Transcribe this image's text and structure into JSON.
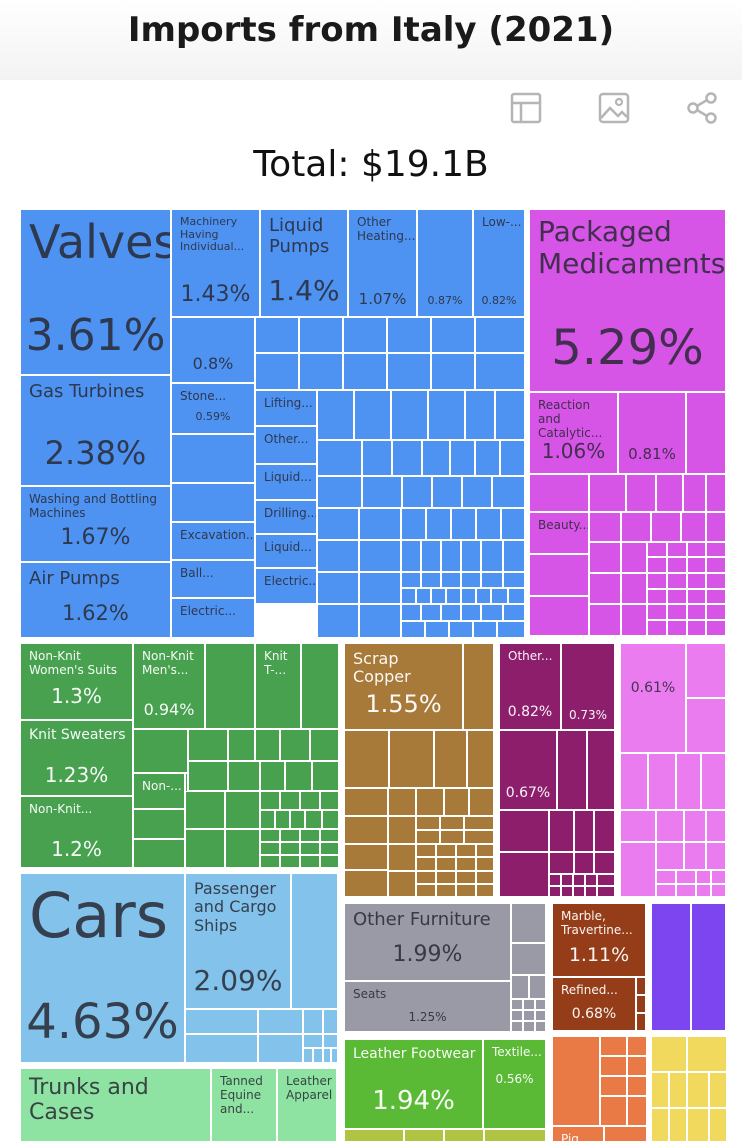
{
  "header": {
    "title": "Imports from Italy (2021)"
  },
  "toolbar": [
    {
      "name": "table-view-button",
      "icon": "table-icon"
    },
    {
      "name": "image-download-button",
      "icon": "image-icon"
    },
    {
      "name": "share-button",
      "icon": "share-icon"
    }
  ],
  "summary": {
    "total_label": "Total: $19.1B"
  },
  "colors": {
    "machinery": "#4f93f2",
    "chemicals": "#d655e6",
    "textiles": "#47a14f",
    "metals": "#a77a3a",
    "plastics": "#8c1e6c",
    "instruments": "#ea7cf0",
    "transportation": "#82c2eb",
    "miscellaneous": "#999aa6",
    "stone": "#953d19",
    "animal_hides": "#8ee3a2",
    "footwear": "#5aba35",
    "foodstuffs": "#e97a45",
    "vegetable": "#f1d95d",
    "mineral": "#b0c343",
    "weapons": "#7d45f0",
    "paper": "#e3a588"
  },
  "chart_data": {
    "type": "treemap",
    "title": "Imports from Italy (2021)",
    "total": "$19.1B",
    "items": [
      {
        "name": "Valves",
        "group": "machinery",
        "share": 3.61,
        "label": "Valves",
        "value_label": "3.61%"
      },
      {
        "name": "Machinery Having Individual Functions",
        "group": "machinery",
        "share": 1.43,
        "label": "Machinery\nHaving\nIndividual...",
        "value_label": "1.43%"
      },
      {
        "name": "Liquid Pumps",
        "group": "machinery",
        "share": 1.4,
        "label": "Liquid\nPumps",
        "value_label": "1.4%"
      },
      {
        "name": "Other Heating Machinery",
        "group": "machinery",
        "share": 1.07,
        "label": "Other\nHeating...",
        "value_label": "1.07%"
      },
      {
        "name": "Machinery (0.87%)",
        "group": "machinery",
        "share": 0.87,
        "label": "",
        "value_label": "0.87%"
      },
      {
        "name": "Low-voltage Protection Equipment",
        "group": "machinery",
        "share": 0.82,
        "label": "Low-...",
        "value_label": "0.82%"
      },
      {
        "name": "Machinery (0.8%)",
        "group": "machinery",
        "share": 0.8,
        "label": "",
        "value_label": "0.8%"
      },
      {
        "name": "Stone Processing Machines",
        "group": "machinery",
        "share": 0.59,
        "label": "Stone...",
        "value_label": "0.59%"
      },
      {
        "name": "Gas Turbines",
        "group": "machinery",
        "share": 2.38,
        "label": "Gas Turbines",
        "value_label": "2.38%"
      },
      {
        "name": "Washing and Bottling Machines",
        "group": "machinery",
        "share": 1.67,
        "label": "Washing and Bottling\nMachines",
        "value_label": "1.67%"
      },
      {
        "name": "Air Pumps",
        "group": "machinery",
        "share": 1.62,
        "label": "Air Pumps",
        "value_label": "1.62%"
      },
      {
        "name": "Lifting Machinery",
        "group": "machinery",
        "share": null,
        "label": "Lifting...",
        "value_label": ""
      },
      {
        "name": "Other Machinery",
        "group": "machinery",
        "share": null,
        "label": "Other...",
        "value_label": ""
      },
      {
        "name": "Liquid Dispensers",
        "group": "machinery",
        "share": null,
        "label": "Liquid...",
        "value_label": ""
      },
      {
        "name": "Drilling Machines",
        "group": "machinery",
        "share": null,
        "label": "Drilling...",
        "value_label": ""
      },
      {
        "name": "Liquid Filtering Machines",
        "group": "machinery",
        "share": null,
        "label": "Liquid...",
        "value_label": ""
      },
      {
        "name": "Electric Machinery",
        "group": "machinery",
        "share": null,
        "label": "Electric...",
        "value_label": ""
      },
      {
        "name": "Excavation Machinery",
        "group": "machinery",
        "share": null,
        "label": "Excavation...",
        "value_label": ""
      },
      {
        "name": "Ball Bearings",
        "group": "machinery",
        "share": null,
        "label": "Ball...",
        "value_label": ""
      },
      {
        "name": "Electric Motors",
        "group": "machinery",
        "share": null,
        "label": "Electric...",
        "value_label": ""
      },
      {
        "name": "Packaged Medicaments",
        "group": "chemicals",
        "share": 5.29,
        "label": "Packaged\nMedicaments",
        "value_label": "5.29%"
      },
      {
        "name": "Reaction and Catalytic Products",
        "group": "chemicals",
        "share": 1.06,
        "label": "Reaction\nand Catalytic...",
        "value_label": "1.06%"
      },
      {
        "name": "Chemicals (0.81%)",
        "group": "chemicals",
        "share": 0.81,
        "label": "",
        "value_label": "0.81%"
      },
      {
        "name": "Beauty Products",
        "group": "chemicals",
        "share": null,
        "label": "Beauty...",
        "value_label": ""
      },
      {
        "name": "Non-Knit Women's Suits",
        "group": "textiles",
        "share": 1.3,
        "label": "Non-Knit\nWomen's Suits",
        "value_label": "1.3%"
      },
      {
        "name": "Non-Knit Men's Suits",
        "group": "textiles",
        "share": 0.94,
        "label": "Non-Knit\nMen's...",
        "value_label": "0.94%"
      },
      {
        "name": "Knit T-shirts",
        "group": "textiles",
        "share": null,
        "label": "Knit\nT-...",
        "value_label": ""
      },
      {
        "name": "Knit Sweaters",
        "group": "textiles",
        "share": 1.23,
        "label": "Knit Sweaters",
        "value_label": "1.23%"
      },
      {
        "name": "Non-Knit Women's Coats",
        "group": "textiles",
        "share": 1.2,
        "label": "Non-Knit...",
        "value_label": "1.2%"
      },
      {
        "name": "Non-Knit Other",
        "group": "textiles",
        "share": null,
        "label": "Non-...",
        "value_label": ""
      },
      {
        "name": "Scrap Copper",
        "group": "metals",
        "share": 1.55,
        "label": "Scrap Copper",
        "value_label": "1.55%"
      },
      {
        "name": "Other Plastic Products",
        "group": "plastics",
        "share": 0.82,
        "label": "Other...",
        "value_label": "0.82%"
      },
      {
        "name": "Plastics (0.73%)",
        "group": "plastics",
        "share": 0.73,
        "label": "",
        "value_label": "0.73%"
      },
      {
        "name": "Plastics (0.67%)",
        "group": "plastics",
        "share": 0.67,
        "label": "",
        "value_label": "0.67%"
      },
      {
        "name": "Instruments (0.61%)",
        "group": "instruments",
        "share": 0.61,
        "label": "",
        "value_label": "0.61%"
      },
      {
        "name": "Cars",
        "group": "transportation",
        "share": 4.63,
        "label": "Cars",
        "value_label": "4.63%"
      },
      {
        "name": "Passenger and Cargo Ships",
        "group": "transportation",
        "share": 2.09,
        "label": "Passenger\nand Cargo\nShips",
        "value_label": "2.09%"
      },
      {
        "name": "Other Furniture",
        "group": "miscellaneous",
        "share": 1.99,
        "label": "Other Furniture",
        "value_label": "1.99%"
      },
      {
        "name": "Seats",
        "group": "miscellaneous",
        "share": 1.25,
        "label": "Seats",
        "value_label": "1.25%"
      },
      {
        "name": "Marble, Travertine and Alabaster",
        "group": "stone",
        "share": 1.11,
        "label": "Marble,\nTravertine...",
        "value_label": "1.11%"
      },
      {
        "name": "Refined Copper",
        "group": "stone",
        "share": 0.68,
        "label": "Refined...",
        "value_label": "0.68%"
      },
      {
        "name": "Trunks and Cases",
        "group": "animal_hides",
        "share": null,
        "label": "Trunks and\nCases",
        "value_label": ""
      },
      {
        "name": "Tanned Equine and Bovine Hides",
        "group": "animal_hides",
        "share": null,
        "label": "Tanned\nEquine\nand...",
        "value_label": ""
      },
      {
        "name": "Leather Apparel",
        "group": "animal_hides",
        "share": null,
        "label": "Leather\nApparel",
        "value_label": ""
      },
      {
        "name": "Leather Footwear",
        "group": "footwear",
        "share": 1.94,
        "label": "Leather Footwear",
        "value_label": "1.94%"
      },
      {
        "name": "Textile Footwear",
        "group": "footwear",
        "share": 0.56,
        "label": "Textile...",
        "value_label": "0.56%"
      },
      {
        "name": "Pig Meat",
        "group": "foodstuffs",
        "share": null,
        "label": "Pig...",
        "value_label": ""
      }
    ]
  }
}
